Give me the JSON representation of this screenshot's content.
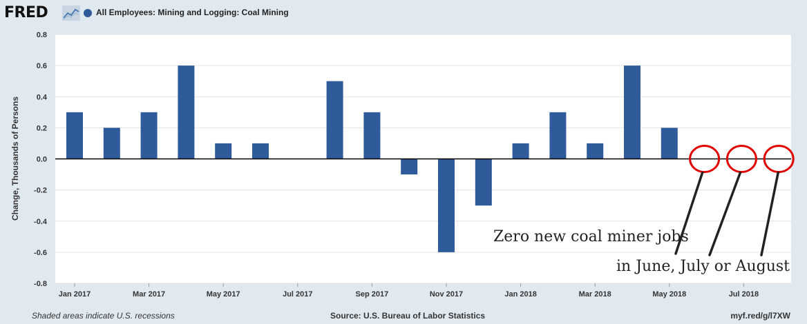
{
  "header": {
    "logo": "FRED",
    "series_title": "All Employees: Mining and Logging: Coal Mining",
    "series_color": "#2f5b9a"
  },
  "chart_data": {
    "type": "bar",
    "title": "All Employees: Mining and Logging: Coal Mining",
    "ylabel": "Change, Thousands of Persons",
    "xlabel": "",
    "ylim": [
      -0.8,
      0.8
    ],
    "yticks": [
      0.8,
      0.6,
      0.4,
      0.2,
      0.0,
      -0.2,
      -0.4,
      -0.6,
      -0.8
    ],
    "ytick_labels": [
      "0.8",
      "0.6",
      "0.4",
      "0.2",
      "0.0",
      "-0.2",
      "-0.4",
      "-0.6",
      "-0.8"
    ],
    "xtick_labels": [
      "Jan 2017",
      "Mar 2017",
      "May 2017",
      "Jul 2017",
      "Sep 2017",
      "Nov 2017",
      "Jan 2018",
      "Mar 2018",
      "May 2018",
      "Jul 2018"
    ],
    "categories": [
      "2017-01",
      "2017-02",
      "2017-03",
      "2017-04",
      "2017-05",
      "2017-06",
      "2017-07",
      "2017-08",
      "2017-09",
      "2017-10",
      "2017-11",
      "2017-12",
      "2018-01",
      "2018-02",
      "2018-03",
      "2018-04",
      "2018-05",
      "2018-06",
      "2018-07",
      "2018-08"
    ],
    "values": [
      0.3,
      0.2,
      0.3,
      0.6,
      0.1,
      0.1,
      0.0,
      0.5,
      0.3,
      -0.1,
      -0.6,
      -0.3,
      0.1,
      0.3,
      0.1,
      0.6,
      0.2,
      0.0,
      0.0,
      0.0
    ],
    "bar_color": "#2f5b9a",
    "grid": true,
    "annotations": {
      "line1": "Zero new coal miner jobs",
      "line2": "in June, July or August",
      "circle_color": "#e00000",
      "circled_categories": [
        "2018-06",
        "2018-07",
        "2018-08"
      ]
    }
  },
  "footer": {
    "recession_note": "Shaded areas indicate U.S. recessions",
    "source": "Source: U.S. Bureau of Labor Statistics",
    "url": "myf.red/g/l7XW"
  }
}
